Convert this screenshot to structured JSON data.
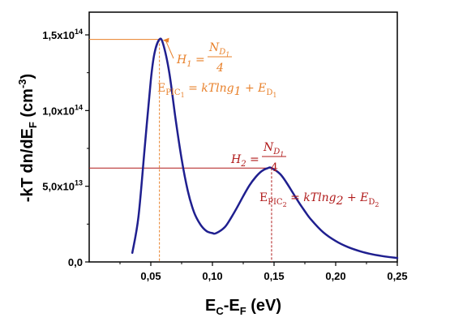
{
  "colors": {
    "curve": "#1f1f8f",
    "peak1_annotation": "#e8802a",
    "peak2_annotation": "#b01a1a",
    "axis": "#000000"
  },
  "chart_data": {
    "type": "line",
    "title": "",
    "xlabel": {
      "main": "E",
      "sub1": "C",
      "mid": "-E",
      "sub2": "F",
      "units": " (eV)"
    },
    "ylabel": {
      "main": "-kT dn/dE",
      "sub": "F",
      "units": " (cm",
      "sup": "-3",
      "close": ")"
    },
    "xlim": [
      0.0,
      0.25
    ],
    "ylim": [
      0.0,
      165000000000000.0
    ],
    "grid": false,
    "x_ticks": [
      {
        "value": 0.05,
        "label": "0,05"
      },
      {
        "value": 0.1,
        "label": "0,10"
      },
      {
        "value": 0.15,
        "label": "0,15"
      },
      {
        "value": 0.2,
        "label": "0,20"
      },
      {
        "value": 0.25,
        "label": "0,25"
      }
    ],
    "y_ticks": [
      {
        "value": 0.0,
        "mantissa": "0,0",
        "exponent": ""
      },
      {
        "value": 50000000000000.0,
        "mantissa": "5,0x10",
        "exponent": "13"
      },
      {
        "value": 100000000000000.0,
        "mantissa": "1,0x10",
        "exponent": "14"
      },
      {
        "value": 150000000000000.0,
        "mantissa": "1,5x10",
        "exponent": "14"
      }
    ],
    "series": [
      {
        "x": [
          0.035,
          0.04,
          0.045,
          0.05,
          0.053,
          0.057,
          0.06,
          0.065,
          0.07,
          0.075,
          0.08,
          0.085,
          0.09,
          0.095,
          0.1,
          0.103,
          0.11,
          0.115,
          0.12,
          0.125,
          0.13,
          0.135,
          0.14,
          0.145,
          0.148,
          0.155,
          0.16,
          0.165,
          0.17,
          0.175,
          0.18,
          0.19,
          0.2,
          0.21,
          0.22,
          0.23,
          0.24,
          0.25
        ],
        "values": [
          6000000000000.0,
          30000000000000.0,
          75000000000000.0,
          120000000000000.0,
          138000000000000.0,
          147000000000000.0,
          144000000000000.0,
          125000000000000.0,
          95000000000000.0,
          68000000000000.0,
          47000000000000.0,
          33000000000000.0,
          25000000000000.0,
          20500000000000.0,
          19000000000000.0,
          19000000000000.0,
          23000000000000.0,
          29000000000000.0,
          36000000000000.0,
          43500000000000.0,
          50500000000000.0,
          56000000000000.0,
          60000000000000.0,
          62000000000000.0,
          62000000000000.0,
          58000000000000.0,
          52500000000000.0,
          46000000000000.0,
          39500000000000.0,
          33500000000000.0,
          28000000000000.0,
          19500000000000.0,
          13800000000000.0,
          9800000000000.0,
          7000000000000.0,
          5000000000000.0,
          3600000000000.0,
          2600000000000.0
        ]
      }
    ],
    "peaks": [
      {
        "x": 0.057,
        "y": 147000000000000.0
      },
      {
        "x": 0.148,
        "y": 62000000000000.0
      }
    ],
    "annotations": {
      "h1": {
        "letter": "H",
        "sub": "1",
        "eq": " = ",
        "num": "N",
        "num_sub": "D",
        "num_subsub": "1",
        "den": "4"
      },
      "e1": {
        "E": "E",
        "sub": "PIC",
        "subsub": "1",
        "rhs": " = kTlng",
        "rhs_sub": "1",
        "plus": " + E",
        "plus_sub": "D",
        "plus_subsub": "1"
      },
      "h2": {
        "letter": "H",
        "sub": "2",
        "eq": " = ",
        "num": "N",
        "num_sub": "D",
        "num_subsub": "1",
        "den": "4"
      },
      "e2": {
        "E": "E",
        "sub": "PIC",
        "subsub": "2",
        "rhs": " = kTlng",
        "rhs_sub": "2",
        "plus": " + E",
        "plus_sub": "D",
        "plus_subsub": "2"
      }
    }
  }
}
